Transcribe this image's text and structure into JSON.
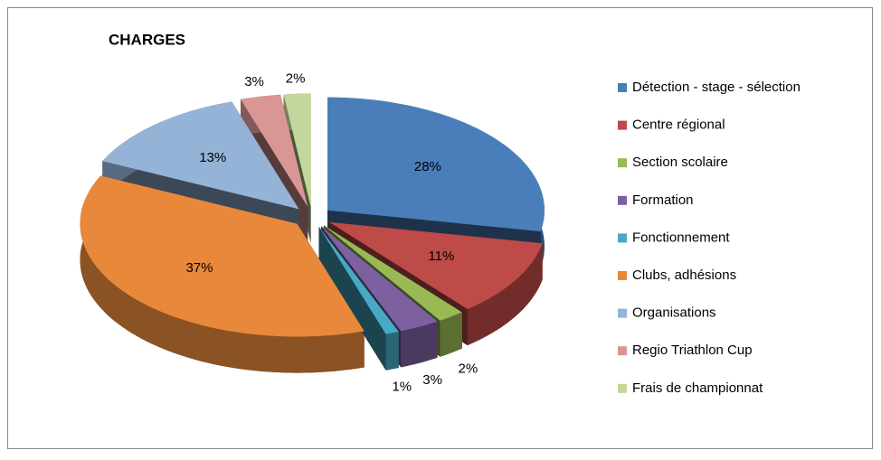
{
  "chart_data": {
    "type": "pie3d",
    "title": "CHARGES",
    "categories": [
      "Détection - stage - sélection",
      "Centre régional",
      "Section scolaire",
      "Formation",
      "Fonctionnement",
      "Clubs, adhésions",
      "Organisations",
      "Regio Triathlon Cup",
      "Frais de championnat"
    ],
    "values": [
      28,
      11,
      2,
      3,
      1,
      37,
      13,
      3,
      2
    ],
    "value_labels": [
      "28%",
      "11%",
      "2%",
      "3%",
      "1%",
      "37%",
      "13%",
      "3%",
      "2%"
    ],
    "colors": [
      "#4a7ebb",
      "#be4b48",
      "#98b954",
      "#7d60a0",
      "#46aac5",
      "#e8883a",
      "#95b3d7",
      "#d99694",
      "#c3d69b"
    ],
    "legend": "right"
  }
}
